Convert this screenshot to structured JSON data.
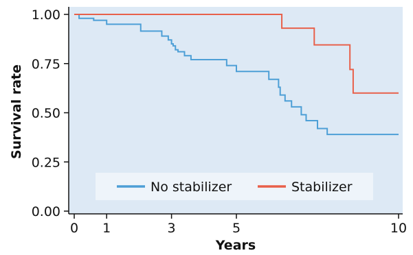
{
  "chart_data": {
    "type": "line",
    "title": "",
    "xlabel": "Years",
    "ylabel": "Survival rate",
    "xlim": [
      0,
      10
    ],
    "ylim": [
      0,
      1
    ],
    "x_ticks": [
      0,
      1,
      3,
      5,
      10
    ],
    "y_ticks": [
      0.0,
      0.25,
      0.5,
      0.75,
      1.0
    ],
    "x_tick_labels": [
      "0",
      "1",
      "3",
      "5",
      "10"
    ],
    "y_tick_labels": [
      "0.00",
      "0.25",
      "0.50",
      "0.75",
      "1.00"
    ],
    "grid": false,
    "legend_position": "bottom-center",
    "background_color": "#dde9f5",
    "series": [
      {
        "name": "No stabilizer",
        "color": "#4d9fd6",
        "step": true,
        "x": [
          0,
          0.15,
          0.6,
          1.0,
          2.05,
          2.7,
          2.9,
          3.0,
          3.05,
          3.12,
          3.2,
          3.4,
          3.6,
          4.7,
          5.0,
          6.0,
          6.3,
          6.35,
          6.5,
          6.7,
          7.0,
          7.15,
          7.5,
          7.8,
          10.0
        ],
        "y": [
          1.0,
          0.98,
          0.97,
          0.95,
          0.915,
          0.89,
          0.87,
          0.85,
          0.84,
          0.82,
          0.81,
          0.79,
          0.77,
          0.74,
          0.71,
          0.67,
          0.63,
          0.59,
          0.56,
          0.53,
          0.49,
          0.46,
          0.42,
          0.39,
          0.39
        ]
      },
      {
        "name": "Stabilizer",
        "color": "#e8604a",
        "step": true,
        "x": [
          0,
          6.4,
          7.4,
          8.5,
          8.6,
          10.0
        ],
        "y": [
          1.0,
          0.93,
          0.845,
          0.72,
          0.6,
          0.6
        ]
      }
    ]
  }
}
